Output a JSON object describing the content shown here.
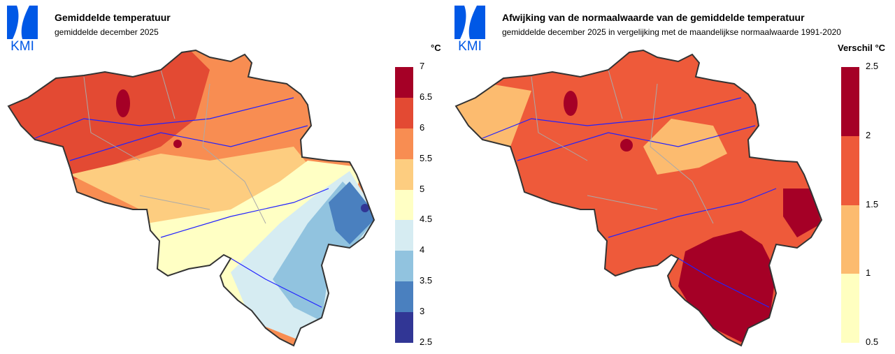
{
  "logo_text": "KMI",
  "left": {
    "title": "Gemiddelde temperatuur",
    "subtitle": "gemiddelde december 2025",
    "unit": "°C",
    "legend": {
      "labels": [
        "7",
        "6.5",
        "6",
        "5.5",
        "5",
        "4.5",
        "4",
        "3.5",
        "3",
        "2.5"
      ],
      "colors": [
        "#a50026",
        "#e34a33",
        "#f88d52",
        "#fdcd80",
        "#ffffc4",
        "#d6ecf2",
        "#91c3df",
        "#4a80bf",
        "#313695"
      ]
    }
  },
  "right": {
    "title": "Afwijking van de normaalwaarde van de gemiddelde temperatuur",
    "subtitle": "gemiddelde december 2025 in vergelijking met de maandelijkse normaalwaarde 1991-2020",
    "unit": "Verschil °C",
    "legend": {
      "labels": [
        "2.5",
        "2",
        "1.5",
        "1",
        "0.5"
      ],
      "colors": [
        "#a50026",
        "#ee5a3a",
        "#fcbb6f",
        "#ffffc0"
      ]
    }
  }
}
